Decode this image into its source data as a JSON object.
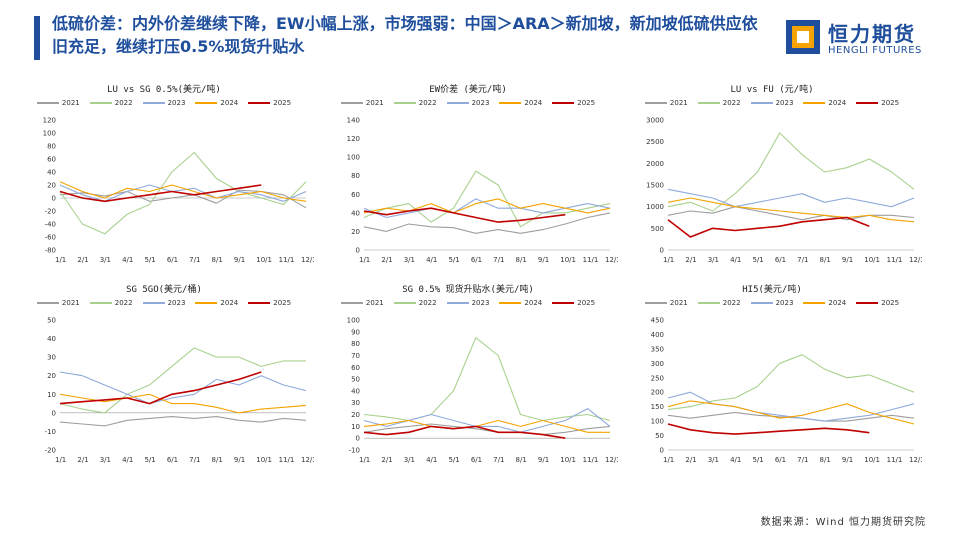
{
  "header": {
    "title": "低硫价差：内外价差继续下降，EW小幅上涨，市场强弱：中国＞ARA＞新加坡，新加坡低硫供应依旧充足，继续打压0.5%现货升贴水",
    "logo_cn": "恒力期货",
    "logo_en": "HENGLI FUTURES"
  },
  "footer": {
    "source": "数据来源：Wind 恒力期货研究院"
  },
  "colors": {
    "accent": "#1f4e9c",
    "c2021": "#9e9e9e",
    "c2022": "#a9d18e",
    "c2023": "#8faadc",
    "c2024": "#f4a300",
    "c2025": "#c00000"
  },
  "legend": [
    "2021",
    "2022",
    "2023",
    "2024",
    "2025"
  ],
  "months": [
    "1/1",
    "2/1",
    "3/1",
    "4/1",
    "5/1",
    "6/1",
    "7/1",
    "8/1",
    "9/1",
    "10/1",
    "11/1",
    "12/1"
  ],
  "chart_data": [
    {
      "type": "line",
      "title": "LU vs SG 0.5%(美元/吨)",
      "ylim": [
        -80,
        120
      ],
      "yticks": [
        -80,
        -60,
        -40,
        -20,
        0,
        20,
        40,
        60,
        80,
        100,
        120
      ],
      "series": [
        {
          "name": "2021",
          "values": [
            5,
            8,
            3,
            10,
            -5,
            0,
            5,
            -8,
            12,
            10,
            5,
            -15
          ]
        },
        {
          "name": "2022",
          "values": [
            10,
            -40,
            -55,
            -25,
            -10,
            40,
            70,
            30,
            10,
            0,
            -10,
            25
          ]
        },
        {
          "name": "2023",
          "values": [
            20,
            5,
            -5,
            10,
            20,
            10,
            15,
            0,
            10,
            5,
            -5,
            10
          ]
        },
        {
          "name": "2024",
          "values": [
            25,
            10,
            0,
            15,
            10,
            20,
            10,
            0,
            5,
            10,
            0,
            -5
          ]
        },
        {
          "name": "2025",
          "values": [
            10,
            0,
            -5,
            0,
            5,
            10,
            5,
            10,
            15,
            20,
            null,
            null
          ]
        }
      ]
    },
    {
      "type": "line",
      "title": "EW价差 (美元/吨)",
      "ylim": [
        0,
        140
      ],
      "yticks": [
        0,
        20,
        40,
        60,
        80,
        100,
        120,
        140
      ],
      "series": [
        {
          "name": "2021",
          "values": [
            25,
            20,
            28,
            25,
            24,
            18,
            22,
            18,
            22,
            28,
            35,
            40
          ]
        },
        {
          "name": "2022",
          "values": [
            35,
            45,
            50,
            30,
            45,
            85,
            70,
            25,
            40,
            40,
            45,
            50
          ]
        },
        {
          "name": "2023",
          "values": [
            45,
            35,
            40,
            45,
            40,
            55,
            45,
            45,
            40,
            45,
            50,
            45
          ]
        },
        {
          "name": "2024",
          "values": [
            40,
            45,
            42,
            50,
            40,
            50,
            55,
            45,
            50,
            45,
            40,
            45
          ]
        },
        {
          "name": "2025",
          "values": [
            42,
            38,
            42,
            45,
            40,
            35,
            30,
            32,
            35,
            38,
            null,
            null
          ]
        }
      ]
    },
    {
      "type": "line",
      "title": "LU vs FU (元/吨)",
      "ylim": [
        0,
        3000
      ],
      "yticks": [
        0,
        500,
        1000,
        1500,
        2000,
        2500,
        3000
      ],
      "series": [
        {
          "name": "2021",
          "values": [
            800,
            900,
            850,
            1000,
            900,
            800,
            700,
            800,
            700,
            800,
            800,
            750
          ]
        },
        {
          "name": "2022",
          "values": [
            1000,
            1100,
            900,
            1300,
            1800,
            2700,
            2200,
            1800,
            1900,
            2100,
            1800,
            1400
          ]
        },
        {
          "name": "2023",
          "values": [
            1400,
            1300,
            1200,
            1000,
            1100,
            1200,
            1300,
            1100,
            1200,
            1100,
            1000,
            1200
          ]
        },
        {
          "name": "2024",
          "values": [
            1100,
            1200,
            1100,
            1000,
            950,
            900,
            850,
            800,
            750,
            800,
            700,
            650
          ]
        },
        {
          "name": "2025",
          "values": [
            700,
            300,
            500,
            450,
            500,
            550,
            650,
            700,
            750,
            550,
            null,
            null
          ]
        }
      ]
    },
    {
      "type": "line",
      "title": "SG 5GO(美元/桶)",
      "ylim": [
        -20,
        50
      ],
      "yticks": [
        -20,
        -10,
        0,
        10,
        20,
        30,
        40,
        50
      ],
      "series": [
        {
          "name": "2021",
          "values": [
            -5,
            -6,
            -7,
            -4,
            -3,
            -2,
            -3,
            -2,
            -4,
            -5,
            -3,
            -4
          ]
        },
        {
          "name": "2022",
          "values": [
            5,
            2,
            0,
            10,
            15,
            25,
            35,
            30,
            30,
            25,
            28,
            28
          ]
        },
        {
          "name": "2023",
          "values": [
            22,
            20,
            15,
            10,
            5,
            8,
            10,
            18,
            15,
            20,
            15,
            12
          ]
        },
        {
          "name": "2024",
          "values": [
            10,
            8,
            6,
            8,
            10,
            5,
            5,
            3,
            0,
            2,
            3,
            4
          ]
        },
        {
          "name": "2025",
          "values": [
            5,
            6,
            7,
            8,
            5,
            10,
            12,
            15,
            18,
            22,
            null,
            null
          ]
        }
      ]
    },
    {
      "type": "line",
      "title": "SG 0.5% 现货升贴水(美元/吨)",
      "ylim": [
        -10,
        100
      ],
      "yticks": [
        -10,
        0,
        10,
        20,
        30,
        40,
        50,
        60,
        70,
        80,
        90,
        100
      ],
      "series": [
        {
          "name": "2021",
          "values": [
            5,
            8,
            10,
            12,
            10,
            8,
            5,
            5,
            3,
            5,
            8,
            10
          ]
        },
        {
          "name": "2022",
          "values": [
            20,
            18,
            15,
            20,
            40,
            85,
            70,
            20,
            15,
            18,
            20,
            15
          ]
        },
        {
          "name": "2023",
          "values": [
            15,
            10,
            15,
            20,
            15,
            10,
            10,
            5,
            10,
            15,
            25,
            10
          ]
        },
        {
          "name": "2024",
          "values": [
            10,
            12,
            15,
            10,
            8,
            10,
            15,
            10,
            15,
            10,
            5,
            5
          ]
        },
        {
          "name": "2025",
          "values": [
            5,
            3,
            5,
            10,
            8,
            10,
            5,
            5,
            3,
            0,
            null,
            null
          ]
        }
      ]
    },
    {
      "type": "line",
      "title": "HI5(美元/吨)",
      "ylim": [
        0,
        450
      ],
      "yticks": [
        0,
        50,
        100,
        150,
        200,
        250,
        300,
        350,
        400,
        450
      ],
      "series": [
        {
          "name": "2021",
          "values": [
            120,
            110,
            120,
            130,
            120,
            115,
            110,
            100,
            100,
            110,
            120,
            110
          ]
        },
        {
          "name": "2022",
          "values": [
            140,
            150,
            170,
            180,
            220,
            300,
            330,
            280,
            250,
            260,
            230,
            200
          ]
        },
        {
          "name": "2023",
          "values": [
            180,
            200,
            160,
            150,
            130,
            120,
            110,
            100,
            110,
            120,
            140,
            160
          ]
        },
        {
          "name": "2024",
          "values": [
            150,
            170,
            160,
            150,
            130,
            110,
            120,
            140,
            160,
            130,
            110,
            90
          ]
        },
        {
          "name": "2025",
          "values": [
            90,
            70,
            60,
            55,
            60,
            65,
            70,
            75,
            70,
            60,
            null,
            null
          ]
        }
      ]
    }
  ]
}
